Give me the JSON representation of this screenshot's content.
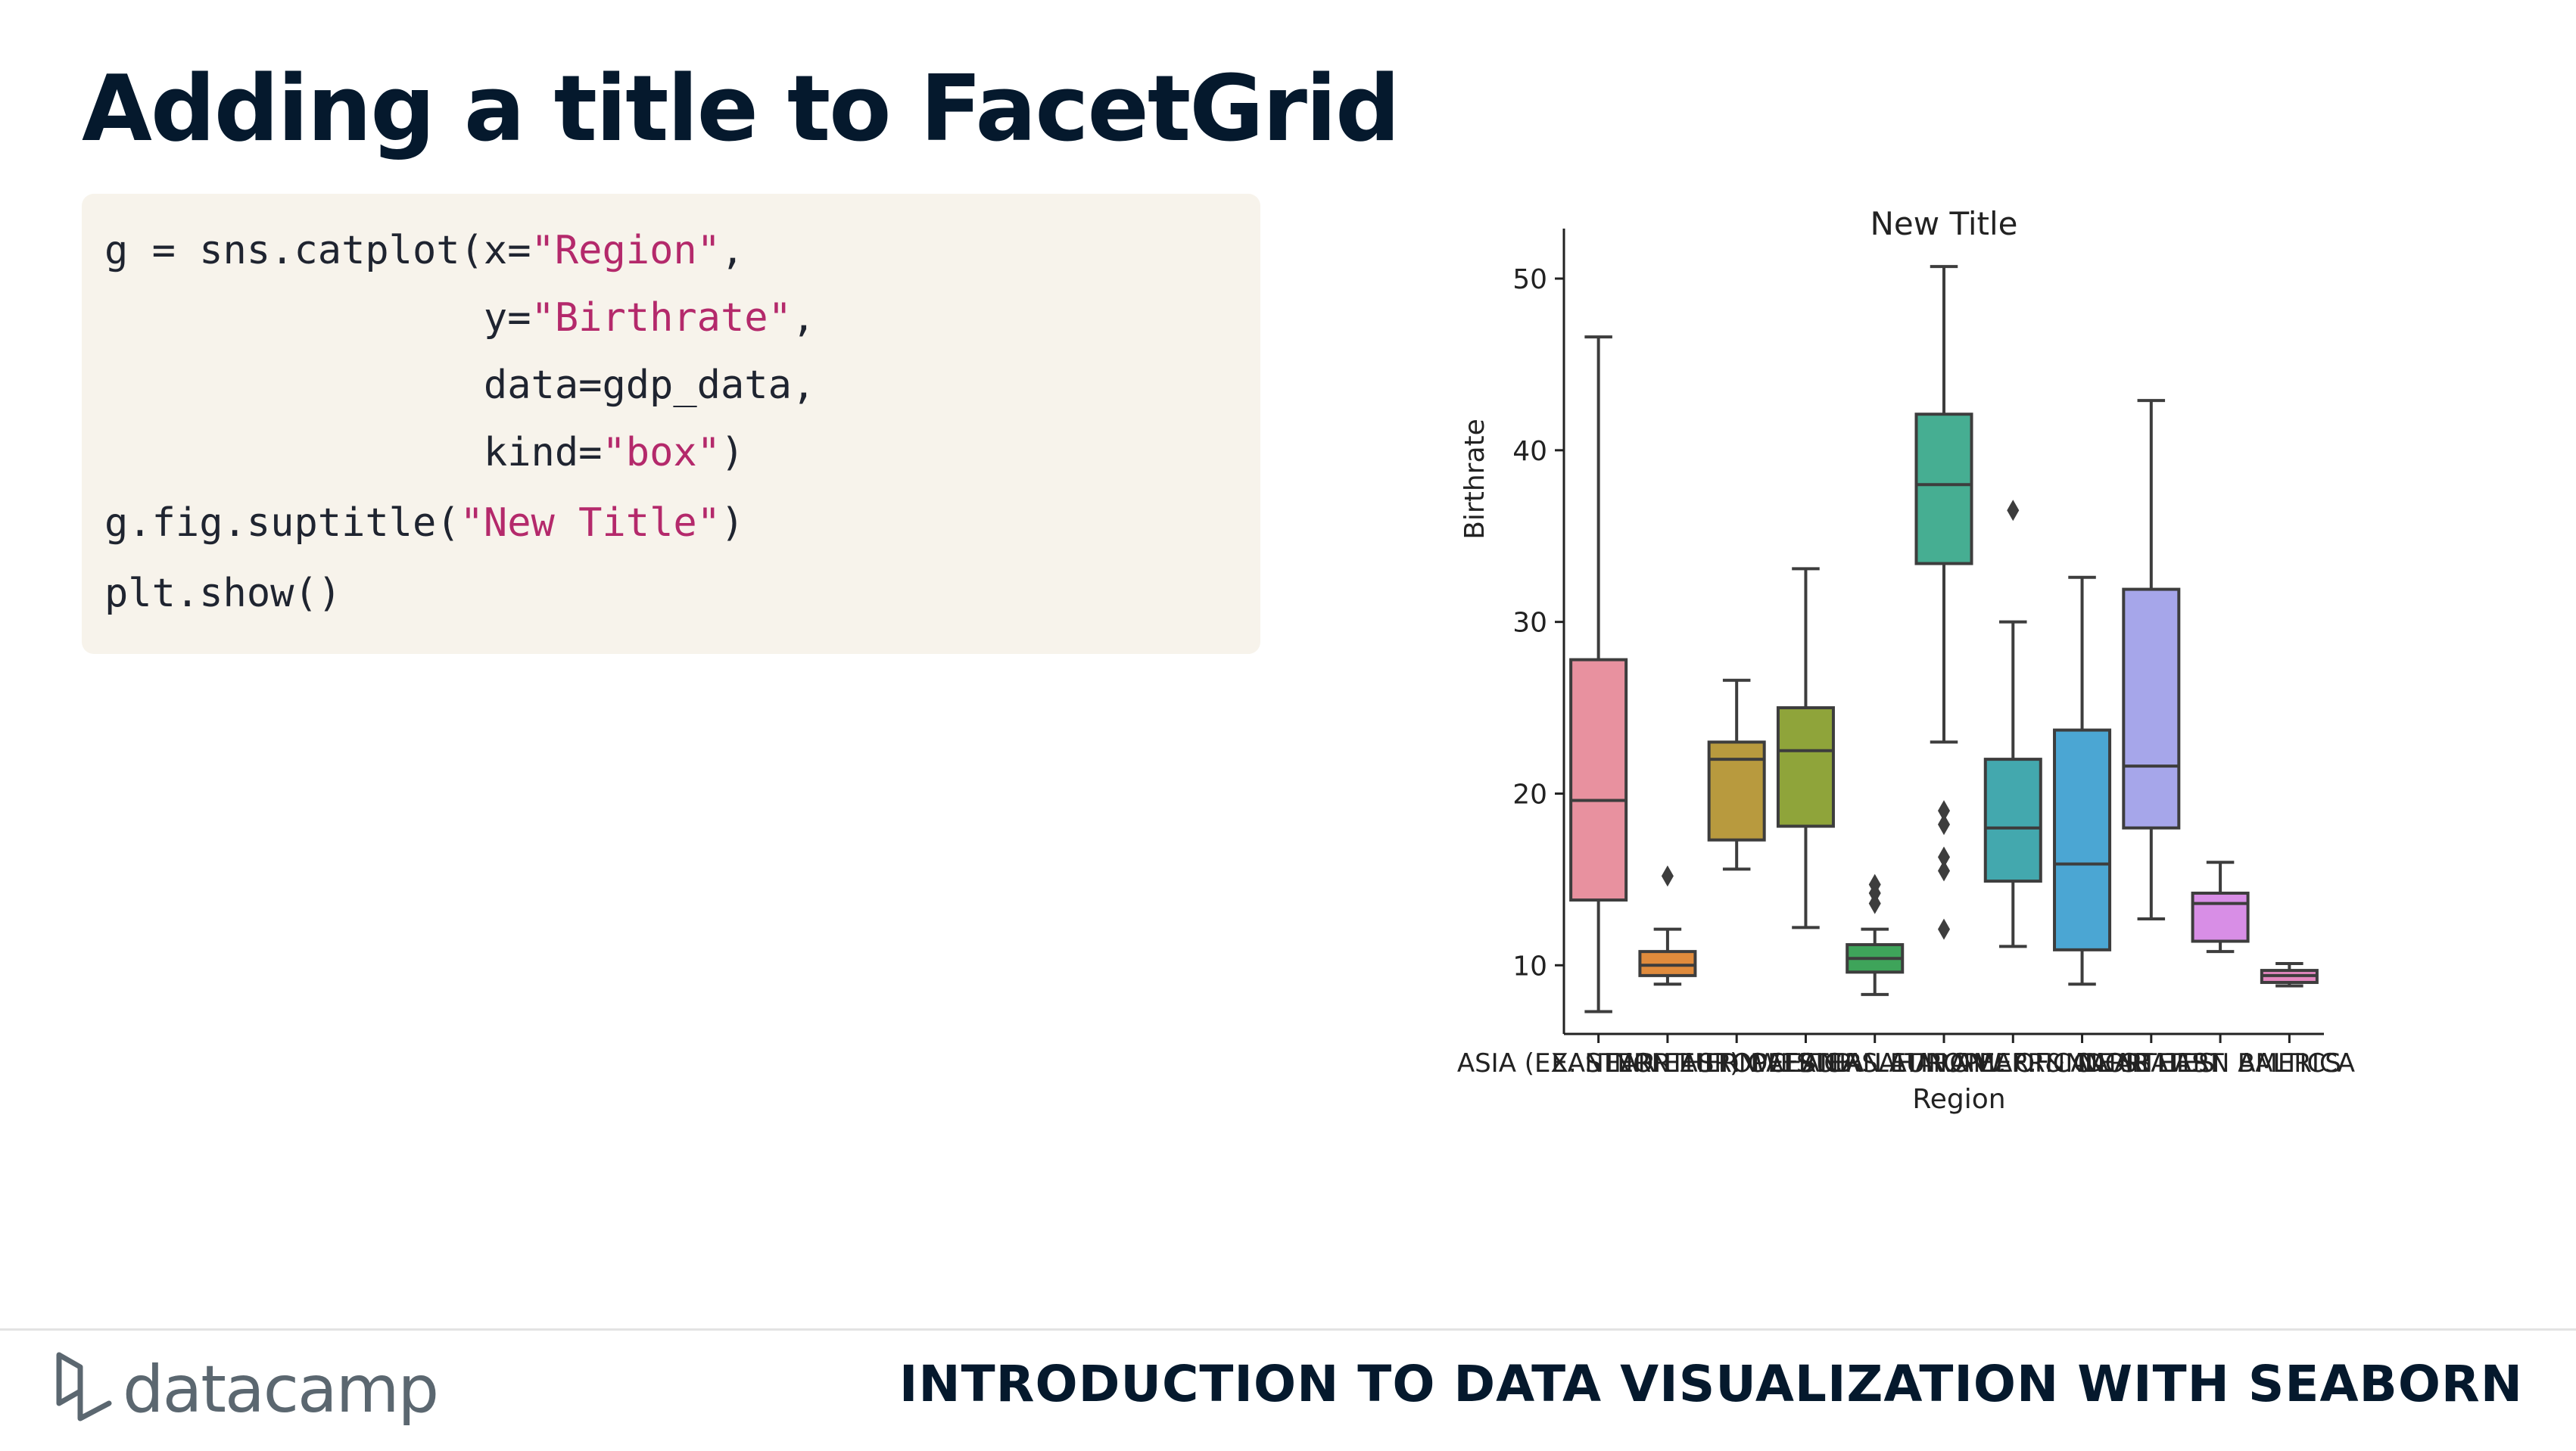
{
  "slide": {
    "title": "Adding a title to FacetGrid"
  },
  "code": {
    "line1": [
      "g = sns.catplot(x=",
      "\"Region\"",
      ","
    ],
    "line2": [
      "                y=",
      "\"Birthrate\"",
      ","
    ],
    "line3": [
      "                data=gdp_data,"
    ],
    "line4": [
      "                kind=",
      "\"box\"",
      ")"
    ],
    "line5": [
      "g.fig.suptitle(",
      "\"New Title\"",
      ")"
    ],
    "line6": [
      "plt.show()"
    ]
  },
  "footer": {
    "logo_text": "datacamp",
    "course_title": "INTRODUCTION TO DATA VISUALIZATION WITH SEABORN"
  },
  "chart_data": {
    "type": "box",
    "title": "New Title",
    "xlabel": "Region",
    "ylabel": "Birthrate",
    "ylim": [
      6,
      53
    ],
    "yticks": [
      10,
      20,
      30,
      40,
      50
    ],
    "category_tick_labels": [
      "ASIA (EX. NEAR EAST)",
      "EASTERN EUROPE",
      "NORTHERN AFRICA",
      "OCEANIA",
      "WESTERN EUROPE",
      "SUB-SAHARAN AFRICA",
      "LATIN AMER. & CARIB",
      "C.W. OF IND. STATES",
      "NEAR EAST",
      "NORTHERN AMERICA",
      "BALTICS"
    ],
    "categories": [
      "ASIA (EX. NEAR EAST)",
      "EASTERN EUROPE",
      "NORTHERN AFRICA",
      "OCEANIA",
      "WESTERN EUROPE",
      "SUB-SAHARAN AFRICA",
      "LATIN AMER. & CARIB",
      "C.W. OF IND. STATES",
      "NEAR EAST",
      "NORTHERN AMERICA",
      "BALTICS"
    ],
    "boxes": [
      {
        "color": "#e8919f",
        "whisker_low": 7.3,
        "q1": 13.8,
        "median": 19.6,
        "q3": 27.8,
        "whisker_high": 46.6,
        "outliers": []
      },
      {
        "color": "#e08b3c",
        "whisker_low": 8.9,
        "q1": 9.4,
        "median": 10.0,
        "q3": 10.8,
        "whisker_high": 12.1,
        "outliers": [
          15.2
        ]
      },
      {
        "color": "#b89a3e",
        "whisker_low": 15.6,
        "q1": 17.3,
        "median": 22.0,
        "q3": 23.0,
        "whisker_high": 26.6,
        "outliers": []
      },
      {
        "color": "#8fa43a",
        "whisker_low": 12.2,
        "q1": 18.1,
        "median": 22.5,
        "q3": 25.0,
        "whisker_high": 33.1,
        "outliers": []
      },
      {
        "color": "#3ea45a",
        "whisker_low": 8.3,
        "q1": 9.6,
        "median": 10.4,
        "q3": 11.2,
        "whisker_high": 12.1,
        "outliers": [
          13.6,
          14.2,
          14.7
        ]
      },
      {
        "color": "#46ae92",
        "whisker_low": 23.0,
        "q1": 33.4,
        "median": 38.0,
        "q3": 42.1,
        "whisker_high": 50.7,
        "outliers": [
          12.1,
          15.5,
          16.3,
          18.2,
          19.0
        ]
      },
      {
        "color": "#43a8ae",
        "whisker_low": 11.1,
        "q1": 14.9,
        "median": 18.0,
        "q3": 22.0,
        "whisker_high": 30.0,
        "outliers": [
          36.5
        ]
      },
      {
        "color": "#4ba6d3",
        "whisker_low": 8.9,
        "q1": 10.9,
        "median": 15.9,
        "q3": 23.7,
        "whisker_high": 32.6,
        "outliers": []
      },
      {
        "color": "#a6a6ea",
        "whisker_low": 12.7,
        "q1": 18.0,
        "median": 21.6,
        "q3": 31.9,
        "whisker_high": 42.9,
        "outliers": []
      },
      {
        "color": "#d88ee6",
        "whisker_low": 10.8,
        "q1": 11.4,
        "median": 13.6,
        "q3": 14.2,
        "whisker_high": 16.0,
        "outliers": []
      },
      {
        "color": "#e487c0",
        "whisker_low": 8.8,
        "q1": 9.0,
        "median": 9.4,
        "q3": 9.7,
        "whisker_high": 10.1,
        "outliers": []
      }
    ]
  }
}
